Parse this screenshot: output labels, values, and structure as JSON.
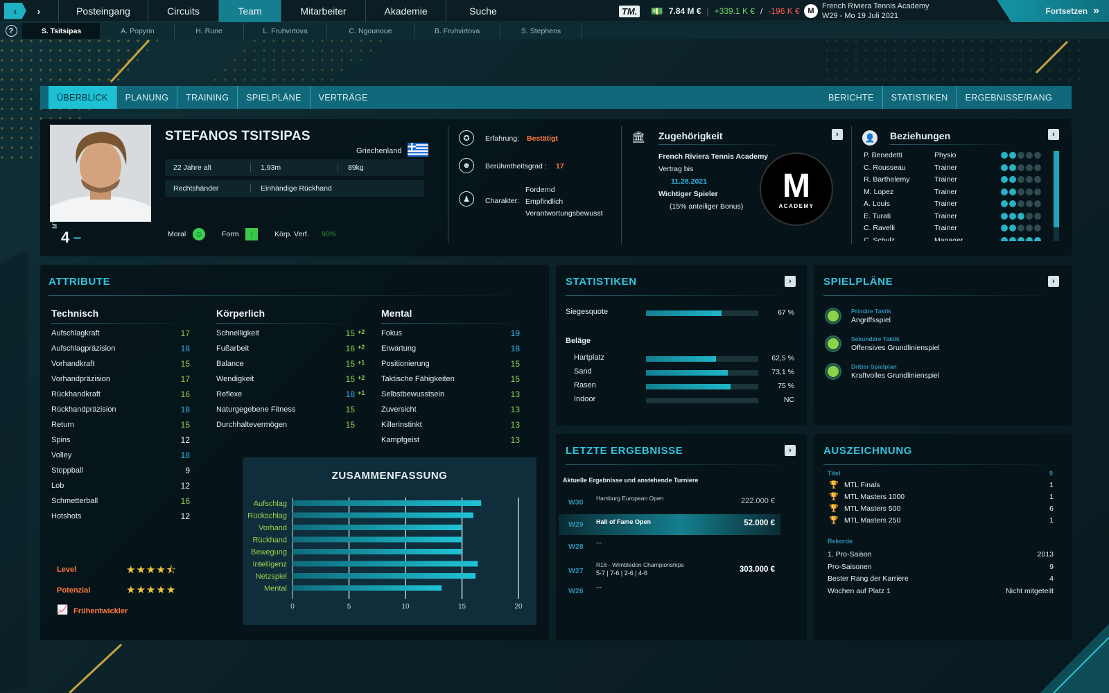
{
  "topnav": {
    "tabs": [
      "Posteingang",
      "Circuits",
      "Team",
      "Mitarbeiter",
      "Akademie",
      "Suche"
    ],
    "active": "Team",
    "logo": "TM.",
    "balance": "7.84 M €",
    "income": "+339.1 K €",
    "sep": "/",
    "expense": "-196 K €",
    "academy": "French Riviera Tennis Academy",
    "date": "W29 - Mo 19 Juli 2021",
    "continue": "Fortsetzen"
  },
  "players": [
    "S. Tsitsipas",
    "A. Popyrin",
    "H. Rune",
    "L. Fruhvirtova",
    "C. Ngounoue",
    "B. Fruhvirtova",
    "S. Stephens"
  ],
  "help": "?",
  "subnav": {
    "left": [
      "ÜBERBLICK",
      "PLANUNG",
      "TRAINING",
      "SPIELPLÄNE",
      "VERTRÄGE"
    ],
    "right": [
      "BERICHTE",
      "STATISTIKEN",
      "ERGEBNISSE/RANG"
    ]
  },
  "player": {
    "name": "STEFANOS TSITSIPAS",
    "country": "Griechenland",
    "age": "22 Jahre alt",
    "height": "1,93m",
    "weight": "89kg",
    "hand": "Rechtshänder",
    "backhand": "Einhändige Rückhand",
    "mtl_label": "MTL",
    "mtl": "4",
    "trend": "–",
    "moral_label": "Moral",
    "form_label": "Form",
    "fitness_label": "Körp. Verf.",
    "fitness": "90%"
  },
  "info": {
    "exp_label": "Erfahrung:",
    "exp": "Bestätigt",
    "fame_label": "Berühmtheitsgrad :",
    "fame": "17",
    "char_label": "Charakter:",
    "char": [
      "Fordernd",
      "Empfindlich",
      "Verantwortungsbewusst"
    ]
  },
  "membership": {
    "title": "Zugehörigkeit",
    "academy": "French Riviera Tennis Academy",
    "contract_label": "Vertrag bis",
    "contract": "11.28.2021",
    "key": "Wichtiger Spieler",
    "bonus": "(15% anteiliger Bonus)",
    "badge": "ACADEMY"
  },
  "relations": {
    "title": "Beziehungen",
    "rows": [
      {
        "name": "P. Benedetti",
        "role": "Physio",
        "level": 2
      },
      {
        "name": "C. Rousseau",
        "role": "Trainer",
        "level": 2
      },
      {
        "name": "R. Barthelemy",
        "role": "Trainer",
        "level": 2
      },
      {
        "name": "M. Lopez",
        "role": "Trainer",
        "level": 2
      },
      {
        "name": "A. Louis",
        "role": "Trainer",
        "level": 2
      },
      {
        "name": "E. Turati",
        "role": "Trainer",
        "level": 3
      },
      {
        "name": "C. Ravelli",
        "role": "Trainer",
        "level": 2
      },
      {
        "name": "C. Schulz",
        "role": "Manager",
        "level": 5
      }
    ]
  },
  "attributes": {
    "title": "ATTRIBUTE",
    "technical": {
      "title": "Technisch",
      "items": [
        {
          "n": "Aufschlagkraft",
          "v": "17",
          "c": "#8fd14f"
        },
        {
          "n": "Aufschlagpräzision",
          "v": "18",
          "c": "#2fb4e6"
        },
        {
          "n": "Vorhandkraft",
          "v": "15",
          "c": "#8fd14f"
        },
        {
          "n": "Vorhandpräzision",
          "v": "17",
          "c": "#8fd14f"
        },
        {
          "n": "Rückhandkraft",
          "v": "16",
          "c": "#8fd14f"
        },
        {
          "n": "Rückhandpräzision",
          "v": "18",
          "c": "#2fb4e6"
        },
        {
          "n": "Return",
          "v": "15",
          "c": "#8fd14f"
        },
        {
          "n": "Spins",
          "v": "12",
          "c": "#f0f4f5"
        },
        {
          "n": "Volley",
          "v": "18",
          "c": "#2fb4e6"
        },
        {
          "n": "Stoppball",
          "v": "9",
          "c": "#f0f4f5"
        },
        {
          "n": "Lob",
          "v": "12",
          "c": "#f0f4f5"
        },
        {
          "n": "Schmetterball",
          "v": "16",
          "c": "#8fd14f"
        },
        {
          "n": "Hotshots",
          "v": "12",
          "c": "#f0f4f5"
        }
      ]
    },
    "physical": {
      "title": "Körperlich",
      "items": [
        {
          "n": "Schnelligkeit",
          "v": "15",
          "b": "+2",
          "c": "#8fd14f"
        },
        {
          "n": "Fußarbeit",
          "v": "16",
          "b": "+2",
          "c": "#8fd14f"
        },
        {
          "n": "Balance",
          "v": "15",
          "b": "+1",
          "c": "#8fd14f"
        },
        {
          "n": "Wendigkeit",
          "v": "15",
          "b": "+2",
          "c": "#8fd14f"
        },
        {
          "n": "Reflexe",
          "v": "18",
          "b": "+1",
          "c": "#2fb4e6"
        },
        {
          "n": "Naturgegebene Fitness",
          "v": "15",
          "b": "",
          "c": "#8fd14f"
        },
        {
          "n": "Durchhaltevermögen",
          "v": "15",
          "b": "",
          "c": "#8fd14f"
        }
      ]
    },
    "mental": {
      "title": "Mental",
      "items": [
        {
          "n": "Fokus",
          "v": "19",
          "c": "#2fb4e6"
        },
        {
          "n": "Erwartung",
          "v": "18",
          "c": "#2fb4e6"
        },
        {
          "n": "Positionierung",
          "v": "15",
          "c": "#8fd14f"
        },
        {
          "n": "Taktische Fähigkeiten",
          "v": "15",
          "c": "#8fd14f"
        },
        {
          "n": "Selbstbewusstsein",
          "v": "13",
          "c": "#8fd14f"
        },
        {
          "n": "Zuversicht",
          "v": "13",
          "c": "#8fd14f"
        },
        {
          "n": "Killerinstinkt",
          "v": "13",
          "c": "#8fd14f"
        },
        {
          "n": "Kampfgeist",
          "v": "13",
          "c": "#8fd14f"
        }
      ]
    },
    "level_label": "Level",
    "level_stars": 4.5,
    "potential_label": "Potenzial",
    "potential_stars": 5,
    "early": "Frühentwickler"
  },
  "chart_data": {
    "type": "bar",
    "title": "ZUSAMMENFASSUNG",
    "orientation": "horizontal",
    "categories": [
      "Aufschlag",
      "Rückschlag",
      "Vorhand",
      "Rückhand",
      "Bewegung",
      "Intelligenz",
      "Netzspiel",
      "Mental"
    ],
    "values": [
      16.7,
      16,
      15,
      15,
      15,
      16.4,
      16.2,
      13.2
    ],
    "xlim": [
      0,
      20
    ],
    "xticks": [
      "0",
      "5",
      "10",
      "15",
      "20"
    ]
  },
  "stats": {
    "title": "STATISTIKEN",
    "win_label": "Siegesquote",
    "win": 0.67,
    "win_text": "67 %",
    "surfaces_label": "Beläge",
    "surfaces": [
      {
        "n": "Hartplatz",
        "v": 0.625,
        "t": "62,5 %"
      },
      {
        "n": "Sand",
        "v": 0.731,
        "t": "73,1 %"
      },
      {
        "n": "Rasen",
        "v": 0.75,
        "t": "75 %"
      },
      {
        "n": "Indoor",
        "v": 0,
        "t": "NC"
      }
    ]
  },
  "tactics": {
    "title": "SPIELPLÄNE",
    "items": [
      {
        "label": "Primäre Taktik",
        "value": "Angriffsspiel"
      },
      {
        "label": "Sekundäre Taktik",
        "value": "Offensives Grundlinienspiel"
      },
      {
        "label": "Dritter Spielplan",
        "value": "Kraftvolles Grundlinienspiel"
      }
    ]
  },
  "results": {
    "title": "LETZTE ERGEBNISSE",
    "subtitle": "Aktuelle Ergebnisse und anstehende Turniere",
    "rows": [
      {
        "w": "W30",
        "t": "Hamburg European Open",
        "s": "",
        "p": "222.000 €"
      },
      {
        "w": "W29",
        "t": "Hall of Fame Open",
        "s": "",
        "p": "52.000 €"
      },
      {
        "w": "W28",
        "t": "---",
        "s": "",
        "p": ""
      },
      {
        "w": "W27",
        "t": "R16 - Wimbledon Championships",
        "s": "5-7 | 7-6 | 2-6 | 4-6",
        "p": "303.000 €"
      },
      {
        "w": "W26",
        "t": "---",
        "s": "",
        "p": ""
      }
    ]
  },
  "awards": {
    "title": "AUSZEICHNUNG",
    "titles_label": "Titel",
    "titles_count": "9",
    "titles": [
      {
        "n": "MTL Finals",
        "v": "1"
      },
      {
        "n": "MTL Masters 1000",
        "v": "1"
      },
      {
        "n": "MTL Masters 500",
        "v": "6"
      },
      {
        "n": "MTL Masters 250",
        "v": "1"
      }
    ],
    "records_label": "Rekorde",
    "records": [
      {
        "n": "1. Pro-Saison",
        "v": "2013"
      },
      {
        "n": "Pro-Saisonen",
        "v": "9"
      },
      {
        "n": "Bester Rang der Karriere",
        "v": "4"
      },
      {
        "n": "Wochen auf Platz 1",
        "v": "Nicht mitgeteilt"
      }
    ]
  }
}
